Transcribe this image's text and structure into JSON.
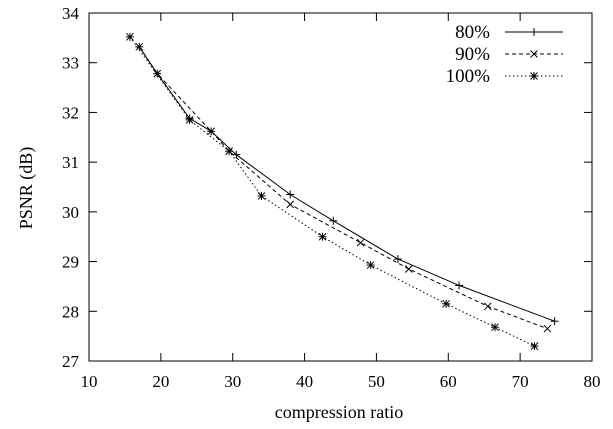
{
  "chart_data": {
    "type": "line",
    "title": "",
    "xlabel": "compression ratio",
    "ylabel": "PSNR (dB)",
    "xlim": [
      10,
      80
    ],
    "ylim": [
      27,
      34
    ],
    "xticks": [
      10,
      20,
      30,
      40,
      50,
      60,
      70,
      80
    ],
    "yticks": [
      27,
      28,
      29,
      30,
      31,
      32,
      33,
      34
    ],
    "grid": false,
    "legend_position": "top-right",
    "series": [
      {
        "name": "80%",
        "line_style": "solid",
        "marker": "plus",
        "x": [
          17.0,
          19.5,
          24.0,
          27.0,
          30.5,
          38.0,
          44.0,
          53.0,
          61.5,
          74.8
        ],
        "y": [
          33.32,
          32.78,
          31.88,
          31.62,
          31.15,
          30.35,
          29.82,
          29.05,
          28.52,
          27.8
        ]
      },
      {
        "name": "90%",
        "line_style": "dashed",
        "marker": "x",
        "x": [
          17.0,
          19.5,
          27.0,
          29.5,
          38.0,
          47.8,
          54.5,
          65.5,
          73.8
        ],
        "y": [
          33.32,
          32.78,
          31.62,
          31.22,
          30.15,
          29.38,
          28.85,
          28.1,
          27.65
        ]
      },
      {
        "name": "100%",
        "line_style": "dotted",
        "marker": "asterisk",
        "x": [
          15.7,
          24.0,
          29.5,
          34.0,
          42.5,
          49.2,
          59.7,
          66.5,
          72.0
        ],
        "y": [
          33.52,
          31.85,
          31.22,
          30.32,
          29.5,
          28.93,
          28.15,
          27.68,
          27.3
        ]
      }
    ]
  }
}
